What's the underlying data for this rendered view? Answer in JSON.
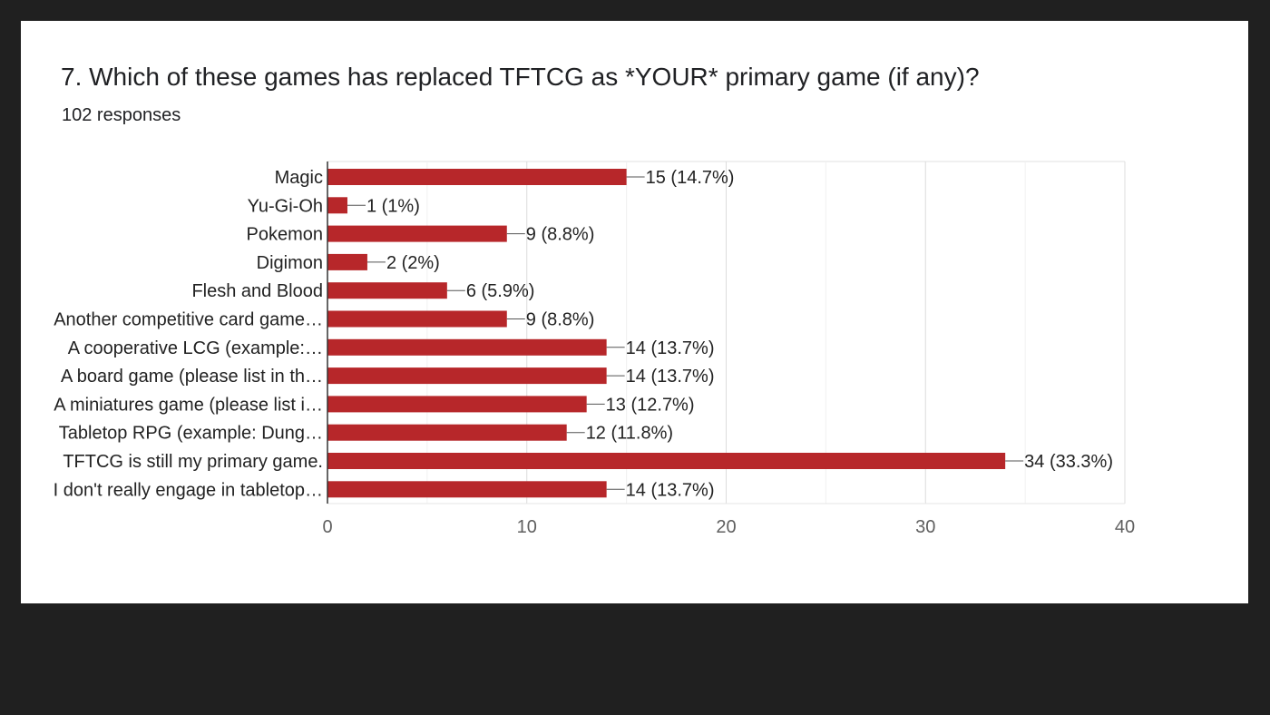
{
  "card": {
    "title": "7. Which of these games has replaced TFTCG as *YOUR* primary game (if any)?",
    "responses": "102 responses"
  },
  "chart_data": {
    "type": "bar",
    "orientation": "horizontal",
    "categories": [
      "Magic",
      "Yu-Gi-Oh",
      "Pokemon",
      "Digimon",
      "Flesh and Blood",
      "Another competitive card game…",
      "A cooperative LCG (example:…",
      "A board game (please list in th…",
      "A miniatures game (please list i…",
      "Tabletop RPG (example: Dung…",
      "TFTCG is still my primary game.",
      "I don't really engage in tabletop…"
    ],
    "values": [
      15,
      1,
      9,
      2,
      6,
      9,
      14,
      14,
      13,
      12,
      34,
      14
    ],
    "data_labels": [
      "15 (14.7%)",
      "1 (1%)",
      "9 (8.8%)",
      "2 (2%)",
      "6 (5.9%)",
      "9 (8.8%)",
      "14 (13.7%)",
      "14 (13.7%)",
      "13 (12.7%)",
      "12 (11.8%)",
      "34 (33.3%)",
      "14 (13.7%)"
    ],
    "xlim": [
      0,
      40
    ],
    "xticks": [
      0,
      10,
      20,
      30,
      40
    ],
    "grid": true,
    "legend": "none",
    "bar_color": "#b7272a"
  }
}
